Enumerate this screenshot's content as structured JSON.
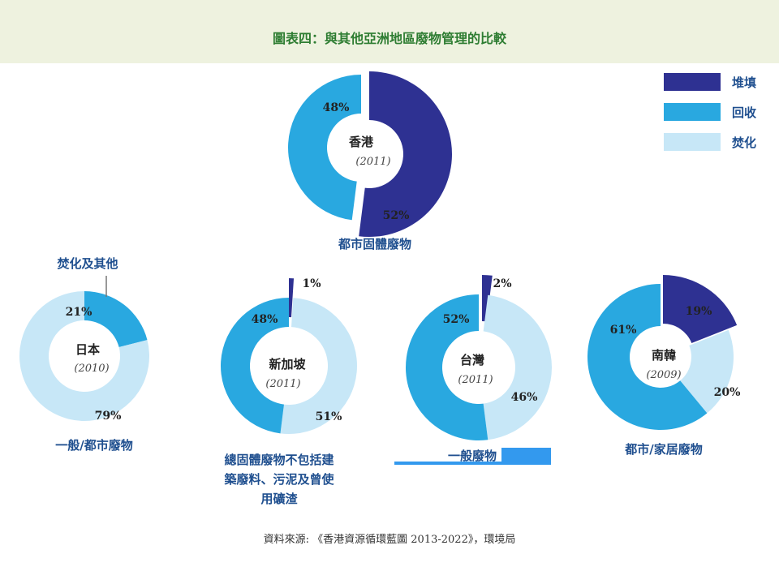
{
  "title": "圖表四：與其他亞洲地區廢物管理的比較",
  "source": "資料來源: 《香港資源循環藍圖 2013-2022》，環境局",
  "colors": {
    "landfill": "#2e3192",
    "recycle": "#29a8e0",
    "incinerate": "#c7e7f7"
  },
  "legend": [
    {
      "label": "堆填",
      "key": "landfill"
    },
    {
      "label": "回收",
      "key": "recycle"
    },
    {
      "label": "焚化",
      "key": "incinerate"
    }
  ],
  "callout": "焚化及其他",
  "chart_data": [
    {
      "type": "pie",
      "name": "香港",
      "year": "(2011)",
      "caption": [
        "都市固體廢物"
      ],
      "slices": [
        {
          "category": "landfill",
          "value": 52,
          "label": "52%"
        },
        {
          "category": "recycle",
          "value": 48,
          "label": "48%"
        }
      ]
    },
    {
      "type": "pie",
      "name": "日本",
      "year": "(2010)",
      "caption": [
        "一般/都市廢物"
      ],
      "slices": [
        {
          "category": "recycle",
          "value": 21,
          "label": "21%"
        },
        {
          "category": "incinerate",
          "value": 79,
          "label": "79%"
        }
      ]
    },
    {
      "type": "pie",
      "name": "新加坡",
      "year": "(2011)",
      "caption": [
        "總固體廢物不包括建",
        "築廢料、污泥及曾使",
        "用礦渣"
      ],
      "slices": [
        {
          "category": "landfill",
          "value": 1,
          "label": "1%"
        },
        {
          "category": "incinerate",
          "value": 51,
          "label": "51%"
        },
        {
          "category": "recycle",
          "value": 48,
          "label": "48%"
        }
      ]
    },
    {
      "type": "pie",
      "name": "台灣",
      "year": "(2011)",
      "caption": [
        "一般廢物"
      ],
      "slices": [
        {
          "category": "landfill",
          "value": 2,
          "label": "2%"
        },
        {
          "category": "incinerate",
          "value": 46,
          "label": "46%"
        },
        {
          "category": "recycle",
          "value": 52,
          "label": "52%"
        }
      ]
    },
    {
      "type": "pie",
      "name": "南韓",
      "year": "(2009)",
      "caption": [
        "都市/家居廢物"
      ],
      "slices": [
        {
          "category": "landfill",
          "value": 19,
          "label": "19%"
        },
        {
          "category": "incinerate",
          "value": 20,
          "label": "20%"
        },
        {
          "category": "recycle",
          "value": 61,
          "label": "61%"
        }
      ]
    }
  ]
}
